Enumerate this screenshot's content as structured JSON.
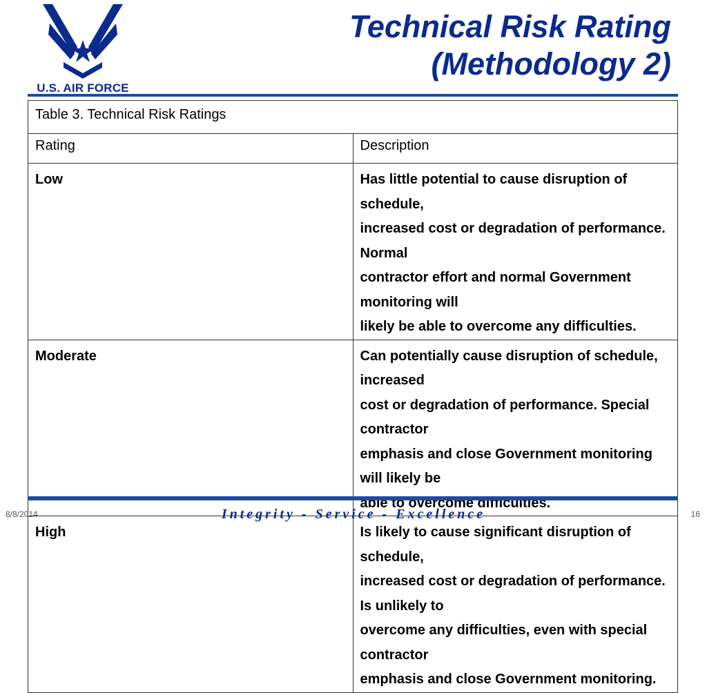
{
  "logo": {
    "text": "U.S. AIR FORCE",
    "icon": "air-force-symbol-icon",
    "color": "#0a2a8c"
  },
  "title": {
    "line1": "Technical Risk Rating",
    "line2": "(Methodology 2)"
  },
  "table": {
    "caption": "Table 3. Technical Risk Ratings",
    "headers": [
      "Rating",
      "Description"
    ],
    "rows": [
      {
        "rating": "Low",
        "description": [
          "Has little potential to cause disruption of schedule,",
          "increased cost or degradation of performance. Normal",
          "contractor effort and normal Government monitoring will",
          "likely be able to overcome any difficulties."
        ]
      },
      {
        "rating": "Moderate",
        "description": [
          "Can potentially cause disruption of schedule, increased",
          "cost or degradation of performance. Special contractor",
          "emphasis and close Government monitoring will likely be",
          "able to overcome difficulties."
        ]
      },
      {
        "rating": "High",
        "description": [
          "Is likely to cause significant disruption of schedule,",
          "increased cost or degradation of performance. Is unlikely to",
          "overcome any difficulties, even with special contractor",
          "emphasis and close Government monitoring."
        ]
      }
    ]
  },
  "footer": {
    "date": "8/8/2014",
    "motto": "Integrity - Service - Excellence",
    "page": "16"
  },
  "colors": {
    "accent": "#1f4aa3",
    "title": "#0a2a8c"
  }
}
